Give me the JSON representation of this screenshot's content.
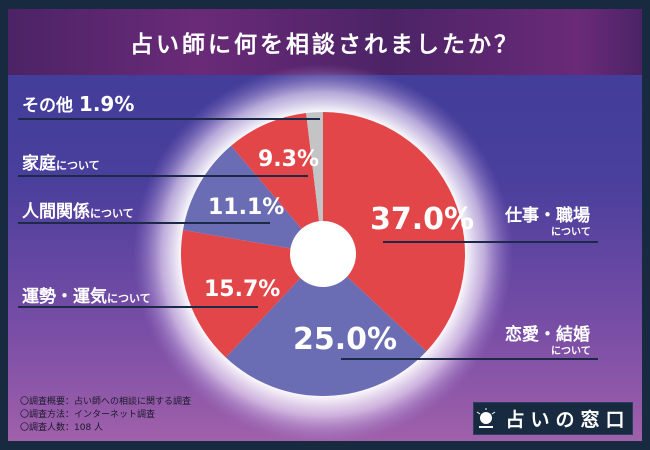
{
  "title": "占い師に何を相談されましたか？",
  "chart_data": {
    "type": "pie",
    "title": "占い師に何を相談されましたか？",
    "donut": true,
    "start": "12 o'clock, clockwise",
    "slices": [
      {
        "label": "仕事・職場",
        "sub": "について",
        "value": 37.0,
        "value_label": "37.0%",
        "color": "#e24649"
      },
      {
        "label": "恋愛・結婚",
        "sub": "について",
        "value": 25.0,
        "value_label": "25.0%",
        "color": "#6a6cb4"
      },
      {
        "label": "運勢・運気",
        "sub": "について",
        "value": 15.7,
        "value_label": "15.7%",
        "color": "#e24649"
      },
      {
        "label": "人間関係",
        "sub": "について",
        "value": 11.1,
        "value_label": "11.1%",
        "color": "#6a6cb4"
      },
      {
        "label": "家庭",
        "sub": "について",
        "value": 9.3,
        "value_label": "9.3%",
        "color": "#e24649"
      },
      {
        "label": "その他",
        "sub": "",
        "value": 1.9,
        "value_label": "1.9%",
        "color": "#c4c4c6"
      }
    ]
  },
  "notes": [
    "〇調査概要：占い師への相談に関する調査",
    "〇調査方法：インターネット調査",
    "〇調査人数：108 人"
  ],
  "logo": {
    "text": "占いの窓口",
    "icon": "crystal-ball-icon"
  }
}
